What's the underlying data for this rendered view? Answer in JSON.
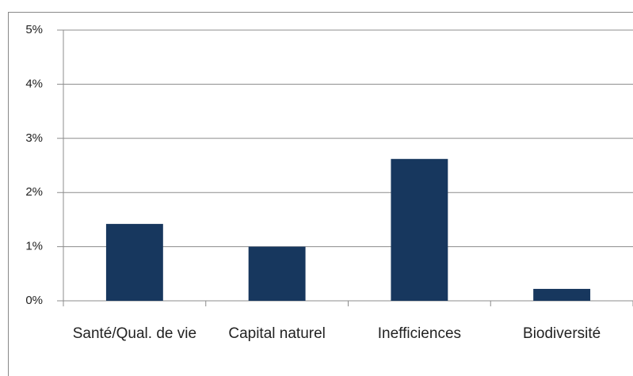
{
  "chart_data": {
    "type": "bar",
    "categories": [
      "Santé/Qual. de vie",
      "Capital naturel",
      "Inefficiences",
      "Biodiversité"
    ],
    "values": [
      1.42,
      1.0,
      2.62,
      0.22
    ],
    "color": "#17375e",
    "ylim": [
      0,
      5
    ],
    "yticks": [
      {
        "value": 0,
        "label": "0%"
      },
      {
        "value": 1,
        "label": "1%"
      },
      {
        "value": 2,
        "label": "2%"
      },
      {
        "value": 3,
        "label": "3%"
      },
      {
        "value": 4,
        "label": "4%"
      },
      {
        "value": 5,
        "label": "5%"
      }
    ],
    "grid": true
  }
}
